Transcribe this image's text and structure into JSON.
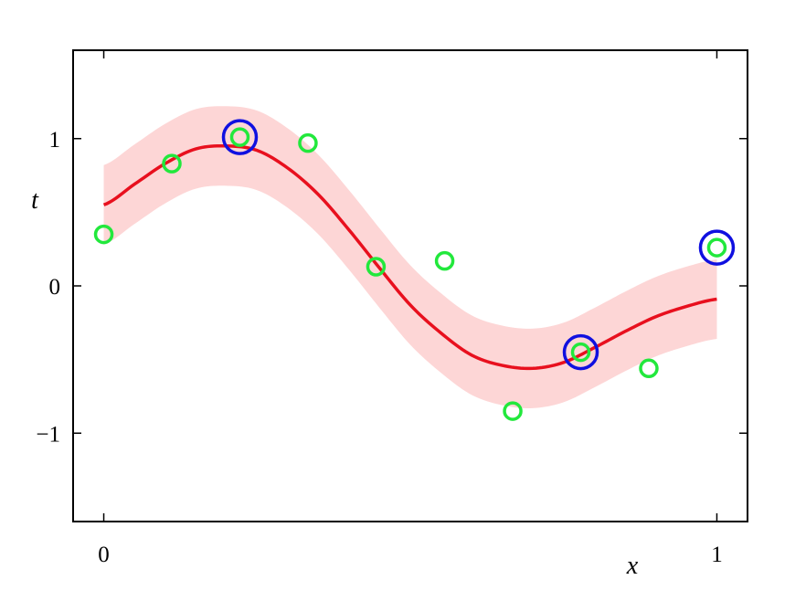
{
  "chart_data": {
    "type": "scatter",
    "title": "",
    "xlabel": "x",
    "ylabel": "t",
    "xlim": [
      -0.05,
      1.05
    ],
    "ylim": [
      -1.6,
      1.6
    ],
    "xticks": [
      {
        "value": 0,
        "label": "0"
      },
      {
        "value": 1,
        "label": "1"
      }
    ],
    "yticks": [
      {
        "value": -1,
        "label": "−1"
      },
      {
        "value": 0,
        "label": "0"
      },
      {
        "value": 1,
        "label": "1"
      }
    ],
    "grid": false,
    "colors": {
      "mean_line": "#e8101e",
      "band": "#fdd6d6",
      "points": "#22e83c",
      "support_vectors": "#1010e0"
    },
    "mean_curve": {
      "x": [
        0,
        0.05,
        0.1,
        0.15,
        0.2,
        0.25,
        0.3,
        0.35,
        0.4,
        0.45,
        0.5,
        0.55,
        0.6,
        0.65,
        0.7,
        0.75,
        0.8,
        0.85,
        0.9,
        0.95,
        1.0
      ],
      "y": [
        0.55,
        0.69,
        0.83,
        0.93,
        0.95,
        0.92,
        0.8,
        0.62,
        0.38,
        0.12,
        -0.13,
        -0.32,
        -0.47,
        -0.54,
        -0.56,
        -0.52,
        -0.42,
        -0.31,
        -0.21,
        -0.14,
        -0.09
      ]
    },
    "band_halfwidth": 0.27,
    "points": [
      {
        "x": 0.0,
        "y": 0.35
      },
      {
        "x": 0.111,
        "y": 0.83
      },
      {
        "x": 0.222,
        "y": 1.01
      },
      {
        "x": 0.333,
        "y": 0.97
      },
      {
        "x": 0.444,
        "y": 0.13
      },
      {
        "x": 0.556,
        "y": 0.17
      },
      {
        "x": 0.667,
        "y": -0.85
      },
      {
        "x": 0.778,
        "y": -0.45
      },
      {
        "x": 0.889,
        "y": -0.56
      },
      {
        "x": 1.0,
        "y": 0.26
      }
    ],
    "support_vectors": [
      {
        "x": 0.222,
        "y": 1.01
      },
      {
        "x": 0.778,
        "y": -0.45
      },
      {
        "x": 1.0,
        "y": 0.26
      }
    ]
  }
}
